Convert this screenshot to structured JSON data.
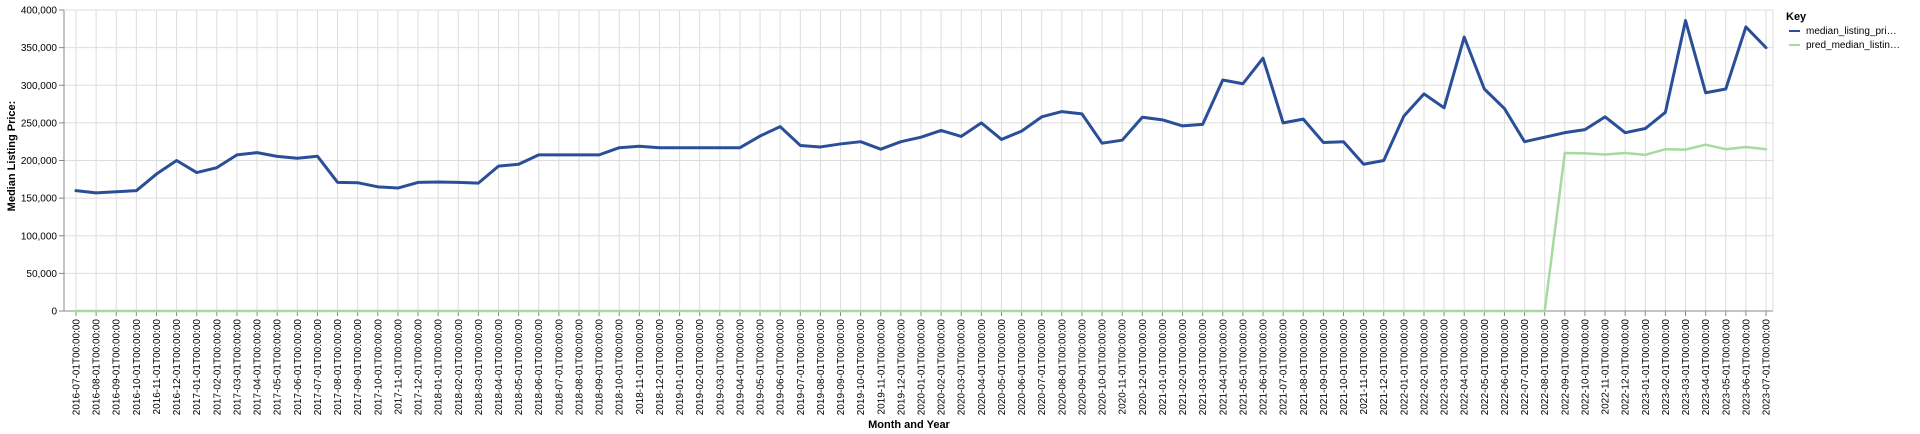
{
  "chart_data": {
    "type": "line",
    "xlabel": "Month and Year",
    "ylabel": "Median Listing Price:",
    "ylim": [
      0,
      400000
    ],
    "yticks": [
      0,
      50000,
      100000,
      150000,
      200000,
      250000,
      300000,
      350000,
      400000
    ],
    "ytick_labels": [
      "0",
      "50,000",
      "100,000",
      "150,000",
      "200,000",
      "250,000",
      "300,000",
      "350,000",
      "400,000"
    ],
    "grid": true,
    "legend": {
      "title": "Key",
      "position": "right"
    },
    "colors": [
      "#2a4f98",
      "#a6dba0"
    ],
    "x": [
      "2016-07-01T00:00:00",
      "2016-08-01T00:00:00",
      "2016-09-01T00:00:00",
      "2016-10-01T00:00:00",
      "2016-11-01T00:00:00",
      "2016-12-01T00:00:00",
      "2017-01-01T00:00:00",
      "2017-02-01T00:00:00",
      "2017-03-01T00:00:00",
      "2017-04-01T00:00:00",
      "2017-05-01T00:00:00",
      "2017-06-01T00:00:00",
      "2017-07-01T00:00:00",
      "2017-08-01T00:00:00",
      "2017-09-01T00:00:00",
      "2017-10-01T00:00:00",
      "2017-11-01T00:00:00",
      "2017-12-01T00:00:00",
      "2018-01-01T00:00:00",
      "2018-02-01T00:00:00",
      "2018-03-01T00:00:00",
      "2018-04-01T00:00:00",
      "2018-05-01T00:00:00",
      "2018-06-01T00:00:00",
      "2018-07-01T00:00:00",
      "2018-08-01T00:00:00",
      "2018-09-01T00:00:00",
      "2018-10-01T00:00:00",
      "2018-11-01T00:00:00",
      "2018-12-01T00:00:00",
      "2019-01-01T00:00:00",
      "2019-02-01T00:00:00",
      "2019-03-01T00:00:00",
      "2019-04-01T00:00:00",
      "2019-05-01T00:00:00",
      "2019-06-01T00:00:00",
      "2019-07-01T00:00:00",
      "2019-08-01T00:00:00",
      "2019-09-01T00:00:00",
      "2019-10-01T00:00:00",
      "2019-11-01T00:00:00",
      "2019-12-01T00:00:00",
      "2020-01-01T00:00:00",
      "2020-02-01T00:00:00",
      "2020-03-01T00:00:00",
      "2020-04-01T00:00:00",
      "2020-05-01T00:00:00",
      "2020-06-01T00:00:00",
      "2020-07-01T00:00:00",
      "2020-08-01T00:00:00",
      "2020-09-01T00:00:00",
      "2020-10-01T00:00:00",
      "2020-11-01T00:00:00",
      "2020-12-01T00:00:00",
      "2021-01-01T00:00:00",
      "2021-02-01T00:00:00",
      "2021-03-01T00:00:00",
      "2021-04-01T00:00:00",
      "2021-05-01T00:00:00",
      "2021-06-01T00:00:00",
      "2021-07-01T00:00:00",
      "2021-08-01T00:00:00",
      "2021-09-01T00:00:00",
      "2021-10-01T00:00:00",
      "2021-11-01T00:00:00",
      "2021-12-01T00:00:00",
      "2022-01-01T00:00:00",
      "2022-02-01T00:00:00",
      "2022-03-01T00:00:00",
      "2022-04-01T00:00:00",
      "2022-05-01T00:00:00",
      "2022-06-01T00:00:00",
      "2022-07-01T00:00:00",
      "2022-08-01T00:00:00",
      "2022-09-01T00:00:00",
      "2022-10-01T00:00:00",
      "2022-11-01T00:00:00",
      "2022-12-01T00:00:00",
      "2023-01-01T00:00:00",
      "2023-02-01T00:00:00",
      "2023-03-01T00:00:00",
      "2023-04-01T00:00:00",
      "2023-05-01T00:00:00",
      "2023-06-01T00:00:00",
      "2023-07-01T00:00:00"
    ],
    "series": [
      {
        "name": "median_listing_pri…",
        "values": [
          160000,
          157000,
          158500,
          159900,
          182000,
          200000,
          184000,
          190500,
          207500,
          210500,
          205500,
          203000,
          205700,
          171000,
          170500,
          165000,
          163400,
          170900,
          171500,
          171000,
          169900,
          192500,
          195000,
          207500,
          207500,
          207500,
          207500,
          217000,
          219000,
          217000,
          217000,
          217000,
          217000,
          217000,
          232500,
          245000,
          220000,
          218000,
          222000,
          225000,
          215000,
          225000,
          231000,
          240000,
          232000,
          250000,
          228000,
          239000,
          258000,
          265000,
          262000,
          223000,
          227000,
          257500,
          254000,
          246000,
          248000,
          307000,
          302000,
          336000,
          250000,
          255000,
          224000,
          225000,
          195000,
          200000,
          259000,
          288500,
          270000,
          364000,
          295000,
          269000,
          225000,
          231000,
          237000,
          241000,
          258000,
          237000,
          242500,
          264000,
          386000,
          290000,
          295000,
          377500,
          350000
        ]
      },
      {
        "name": "pred_median_listin…",
        "values": [
          0,
          0,
          0,
          0,
          0,
          0,
          0,
          0,
          0,
          0,
          0,
          0,
          0,
          0,
          0,
          0,
          0,
          0,
          0,
          0,
          0,
          0,
          0,
          0,
          0,
          0,
          0,
          0,
          0,
          0,
          0,
          0,
          0,
          0,
          0,
          0,
          0,
          0,
          0,
          0,
          0,
          0,
          0,
          0,
          0,
          0,
          0,
          0,
          0,
          0,
          0,
          0,
          0,
          0,
          0,
          0,
          0,
          0,
          0,
          0,
          0,
          0,
          0,
          0,
          0,
          0,
          0,
          0,
          0,
          0,
          0,
          0,
          0,
          0,
          210000,
          209500,
          208000,
          210000,
          207500,
          215000,
          214500,
          221000,
          215000,
          218000,
          215000
        ]
      }
    ]
  }
}
